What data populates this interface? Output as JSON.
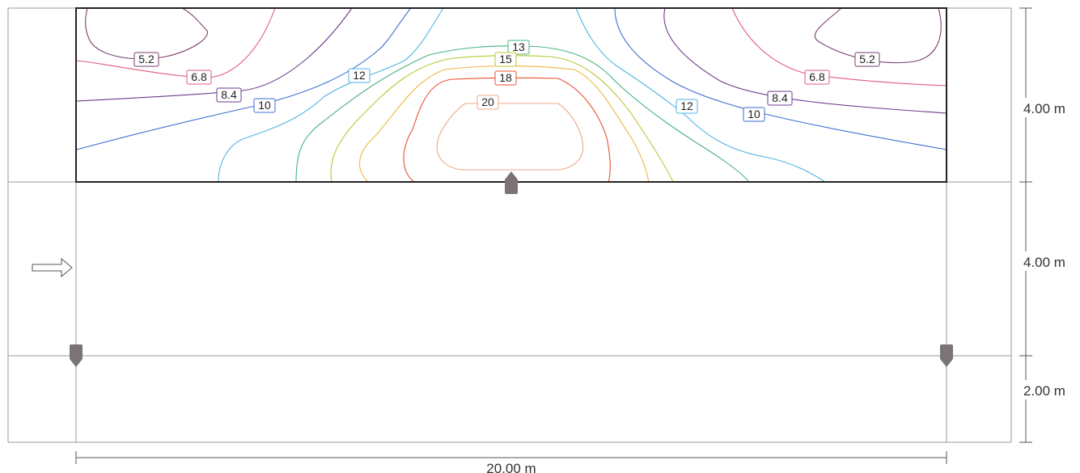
{
  "room": {
    "zones": [
      {
        "id": "zone-top",
        "height_label": "4.00 m"
      },
      {
        "id": "zone-middle",
        "height_label": "4.00 m"
      },
      {
        "id": "zone-bottom",
        "height_label": "2.00 m"
      }
    ],
    "width_label": "20.00 m"
  },
  "contour_colors": {
    "5.2": "#7a3f6e",
    "6.8": "#e3587a",
    "8.4": "#6b3c8c",
    "10": "#3d6ecf",
    "12": "#4fb4e3",
    "13": "#46b482",
    "15": "#bcc532",
    "16": "#f2b441",
    "18": "#e8522f",
    "20": "#f2a98a"
  },
  "contour_labels": [
    {
      "text": "5.2",
      "level": "5.2"
    },
    {
      "text": "6.8",
      "level": "6.8"
    },
    {
      "text": "8.4",
      "level": "8.4"
    },
    {
      "text": "10",
      "level": "10"
    },
    {
      "text": "12",
      "level": "12"
    },
    {
      "text": "13",
      "level": "13"
    },
    {
      "text": "15",
      "level": "15"
    },
    {
      "text": "18",
      "level": "18"
    },
    {
      "text": "20",
      "level": "20"
    },
    {
      "text": "5.2",
      "level": "5.2"
    },
    {
      "text": "6.8",
      "level": "6.8"
    },
    {
      "text": "8.4",
      "level": "8.4"
    },
    {
      "text": "12",
      "level": "12"
    },
    {
      "text": "10",
      "level": "10"
    }
  ],
  "luminaire_color": "#7a7474",
  "flow_arrow": "right-arrow-icon"
}
